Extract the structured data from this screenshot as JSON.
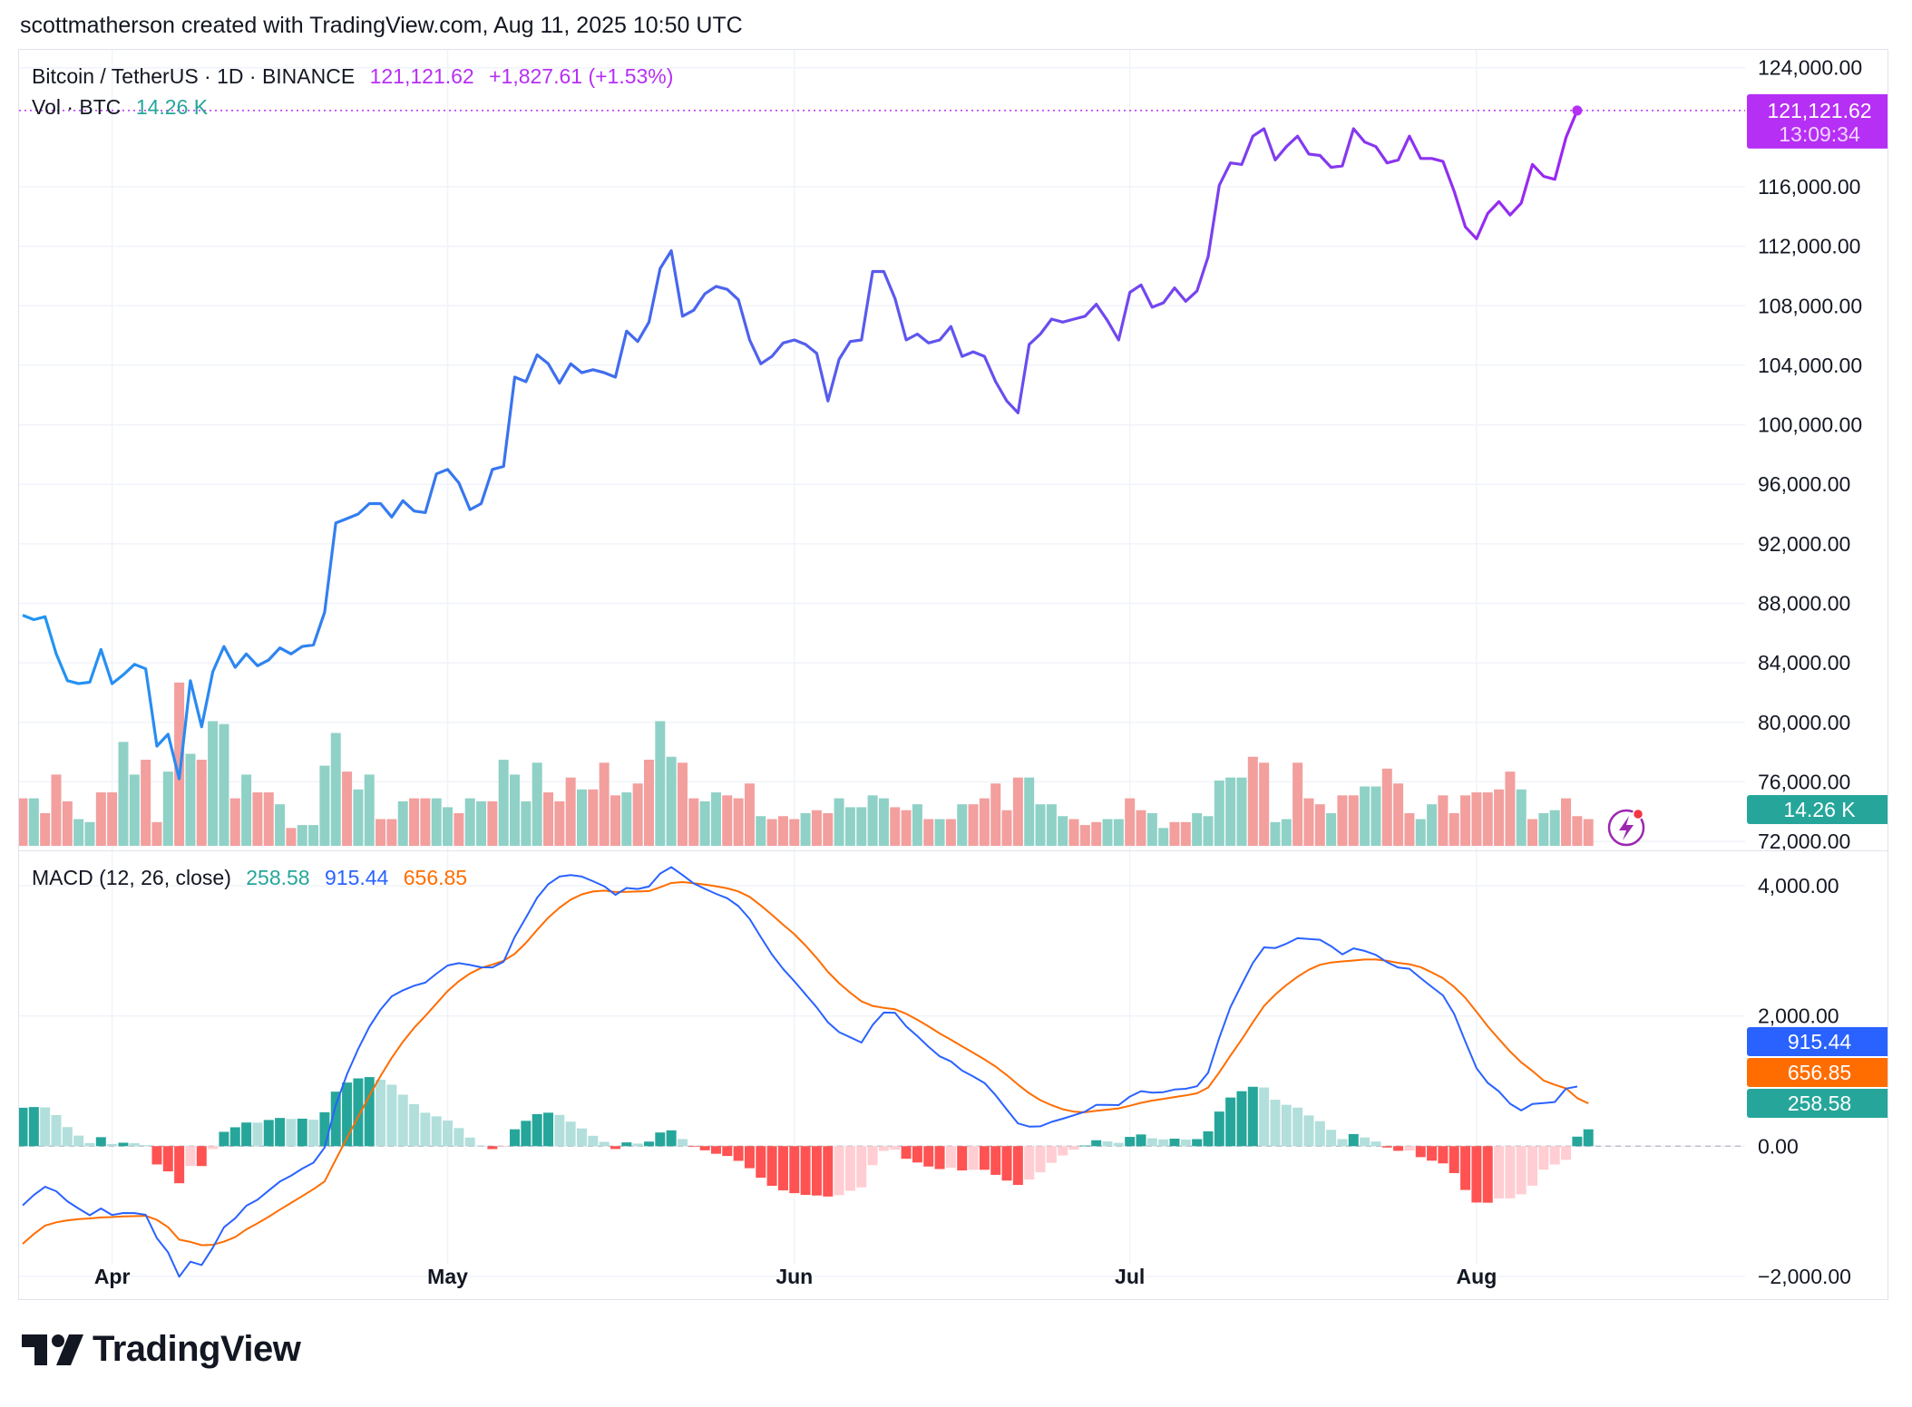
{
  "header": {
    "credit": "scottmatherson created with TradingView.com, Aug 11, 2025 10:50 UTC"
  },
  "legend": {
    "symbol": "Bitcoin / TetherUS · 1D · BINANCE",
    "price": "121,121.62",
    "change": "+1,827.61 (+1.53%)",
    "vol_label": "Vol · BTC",
    "vol_value": "14.26 K"
  },
  "macd_legend": {
    "label": "MACD (12, 26, close)",
    "hist": "258.58",
    "macd": "915.44",
    "signal": "656.85"
  },
  "price_tags": {
    "last": "121,121.62",
    "countdown": "13:09:34",
    "volume": "14.26 K",
    "macd": "915.44",
    "signal": "656.85",
    "hist": "258.58"
  },
  "brand": {
    "name": "TradingView"
  },
  "colors": {
    "price_line_start": "#2196f3",
    "price_line_end": "#9c27f0",
    "last_price": "#b62ff5",
    "volume_up": "#8fd1c6",
    "volume_down": "#f29f9e",
    "macd_line": "#2962ff",
    "signal_line": "#ff6d00",
    "hist_up_strong": "#26a69a",
    "hist_up_weak": "#b2dfdb",
    "hist_down_strong": "#ff5252",
    "hist_down_weak": "#ffcdd2",
    "grid": "#f0f3fa"
  },
  "chart_data": [
    {
      "type": "line",
      "title": "Bitcoin / TetherUS · 1D · BINANCE",
      "x_labels": [
        "Apr",
        "May",
        "Jun",
        "Jul",
        "Aug"
      ],
      "y_ticks": [
        72000,
        76000,
        80000,
        84000,
        88000,
        92000,
        96000,
        100000,
        104000,
        108000,
        112000,
        116000,
        124000
      ],
      "y_tick_labels": [
        "72,000.00",
        "76,000.00",
        "80,000.00",
        "84,000.00",
        "88,000.00",
        "92,000.00",
        "96,000.00",
        "100,000.00",
        "104,000.00",
        "108,000.00",
        "112,000.00",
        "116,000.00",
        "124,000.00"
      ],
      "ylim": [
        71700,
        125200
      ],
      "log_scale": false,
      "grid": true,
      "series": [
        {
          "name": "Bitcoin / TetherUS",
          "values": [
            87200,
            86900,
            87100,
            84600,
            82800,
            82600,
            82700,
            84900,
            82600,
            83200,
            83900,
            83600,
            78400,
            79200,
            76200,
            82800,
            79700,
            83400,
            85100,
            83700,
            84600,
            83800,
            84200,
            85000,
            84600,
            85100,
            85200,
            87400,
            93400,
            93700,
            94000,
            94700,
            94700,
            93800,
            94900,
            94200,
            94100,
            96700,
            97000,
            96100,
            94300,
            94700,
            97000,
            97200,
            103200,
            102900,
            104700,
            104100,
            102800,
            104100,
            103500,
            103700,
            103500,
            103200,
            106300,
            105600,
            106900,
            110500,
            111700,
            107300,
            107700,
            108800,
            109300,
            109100,
            108400,
            105700,
            104100,
            104600,
            105500,
            105700,
            105400,
            104800,
            101600,
            104400,
            105600,
            105700,
            110300,
            110300,
            108500,
            105700,
            106100,
            105500,
            105700,
            106600,
            104600,
            104900,
            104600,
            102900,
            101600,
            100800,
            105400,
            106100,
            107100,
            106900,
            107100,
            107300,
            108100,
            107000,
            105700,
            108900,
            109400,
            107900,
            108200,
            109200,
            108300,
            109000,
            111300,
            116100,
            117600,
            117500,
            119400,
            119900,
            117800,
            118700,
            119400,
            118200,
            118100,
            117300,
            117400,
            119900,
            119000,
            118700,
            117600,
            117800,
            119400,
            117900,
            117900,
            117700,
            115700,
            113300,
            112500,
            114200,
            115000,
            114100,
            114900,
            117500,
            116700,
            116500,
            119300,
            121121.62
          ]
        }
      ]
    },
    {
      "type": "bar",
      "title": "Vol · BTC",
      "unit": "K BTC",
      "last_value": "14.26 K",
      "up": [
        false,
        true,
        false,
        false,
        false,
        true,
        true,
        false,
        false,
        true,
        true,
        false,
        false,
        true,
        false,
        true,
        false,
        true,
        true,
        false,
        true,
        false,
        false,
        true,
        false,
        true,
        true,
        true,
        true,
        false,
        true,
        true,
        false,
        false,
        true,
        false,
        false,
        true,
        true,
        false,
        true,
        true,
        false,
        true,
        true,
        true,
        true,
        false,
        false,
        false,
        true,
        false,
        false,
        false,
        true,
        false,
        false,
        true,
        true,
        false,
        false,
        true,
        true,
        false,
        false,
        false,
        true,
        false,
        false,
        false,
        true,
        false,
        false,
        true,
        true,
        true,
        true,
        true,
        false,
        false,
        true,
        false,
        true,
        false,
        true,
        false,
        false,
        false,
        false,
        false,
        true,
        true,
        true,
        true,
        false,
        false,
        false,
        true,
        true,
        false,
        false,
        true,
        true,
        false,
        false,
        true,
        true,
        true,
        true,
        true,
        false,
        false,
        true,
        true,
        false,
        false,
        false,
        true,
        false,
        false,
        true,
        true,
        false,
        false,
        false,
        true,
        true,
        false,
        false,
        false,
        false,
        false,
        false,
        false,
        true,
        false,
        true,
        true,
        false,
        false,
        false
      ],
      "values": [
        16,
        16,
        11,
        24,
        15,
        9,
        8,
        18,
        18,
        35,
        24,
        29,
        8,
        25,
        55,
        31,
        29,
        42,
        41,
        16,
        24,
        18,
        18,
        14,
        6,
        7,
        7,
        27,
        38,
        25,
        19,
        24,
        9,
        9,
        15,
        16,
        16,
        16,
        13,
        11,
        16,
        15,
        15,
        29,
        24,
        15,
        28,
        18,
        15,
        23,
        19,
        19,
        28,
        17,
        18,
        21,
        29,
        42,
        30,
        28,
        16,
        15,
        18,
        17,
        16,
        21,
        10,
        9,
        10,
        9,
        11,
        12,
        11,
        16,
        13,
        13,
        17,
        16,
        13,
        12,
        14,
        9,
        9,
        9,
        14,
        14,
        16,
        21,
        12,
        23,
        23,
        14,
        14,
        10,
        9,
        7,
        8,
        9,
        9,
        16,
        12,
        11,
        6,
        8,
        8,
        11,
        10,
        22,
        23,
        23,
        30,
        28,
        8,
        9,
        28,
        16,
        14,
        11,
        17,
        17,
        20,
        20,
        26,
        21,
        11,
        9,
        14,
        17,
        11,
        17,
        18,
        18,
        19,
        25,
        19,
        9,
        11,
        12,
        16,
        10,
        9
      ]
    },
    {
      "type": "line",
      "title": "MACD (12, 26, close)",
      "y_ticks": [
        -2000,
        0,
        2000,
        4000
      ],
      "y_tick_labels": [
        "−2,000.00",
        "0.00",
        "2,000.00",
        "4,000.00"
      ],
      "ylim": [
        -2350,
        4530
      ],
      "grid": true,
      "series": [
        {
          "name": "MACD",
          "values": [
            -910,
            -751,
            -624,
            -693,
            -847,
            -958,
            -1062,
            -957,
            -1057,
            -1027,
            -1029,
            -1055,
            -1414,
            -1632,
            -2006,
            -1775,
            -1827,
            -1561,
            -1247,
            -1108,
            -916,
            -824,
            -682,
            -543,
            -454,
            -345,
            -254,
            -21,
            630,
            1105,
            1492,
            1833,
            2098,
            2302,
            2393,
            2465,
            2512,
            2650,
            2775,
            2812,
            2784,
            2748,
            2746,
            2833,
            3214,
            3512,
            3815,
            4024,
            4142,
            4165,
            4141,
            4071,
            3992,
            3860,
            3966,
            3951,
            3988,
            4187,
            4286,
            4165,
            4035,
            3954,
            3876,
            3809,
            3687,
            3491,
            3212,
            2944,
            2722,
            2533,
            2332,
            2132,
            1904,
            1752,
            1672,
            1591,
            1862,
            2052,
            2050,
            1840,
            1690,
            1527,
            1379,
            1302,
            1161,
            1071,
            970,
            782,
            562,
            349,
            300,
            305,
            373,
            422,
            475,
            530,
            634,
            635,
            630,
            762,
            845,
            821,
            830,
            870,
            881,
            920,
            1129,
            1665,
            2138,
            2483,
            2814,
            3054,
            3043,
            3111,
            3195,
            3182,
            3171,
            3072,
            2947,
            3038,
            3000,
            2938,
            2826,
            2743,
            2725,
            2581,
            2447,
            2315,
            2032,
            1605,
            1197,
            973,
            841,
            651,
            548,
            647,
            661,
            678,
            884,
            915.44
          ]
        },
        {
          "name": "Signal",
          "values": [
            -1500,
            -1350,
            -1220,
            -1170,
            -1140,
            -1120,
            -1110,
            -1095,
            -1090,
            -1080,
            -1075,
            -1070,
            -1133,
            -1244,
            -1436,
            -1471,
            -1521,
            -1516,
            -1467,
            -1398,
            -1279,
            -1185,
            -1084,
            -976,
            -872,
            -767,
            -661,
            -542,
            -207,
            128,
            451,
            772,
            1077,
            1358,
            1602,
            1819,
            1999,
            2192,
            2382,
            2534,
            2652,
            2737,
            2791,
            2847,
            2955,
            3123,
            3323,
            3510,
            3662,
            3788,
            3869,
            3912,
            3926,
            3904,
            3908,
            3911,
            3918,
            3977,
            4043,
            4056,
            4040,
            4018,
            3993,
            3960,
            3913,
            3830,
            3697,
            3554,
            3402,
            3255,
            3081,
            2890,
            2678,
            2504,
            2358,
            2224,
            2154,
            2125,
            2103,
            2034,
            1941,
            1840,
            1731,
            1634,
            1534,
            1434,
            1333,
            1223,
            1091,
            945,
            813,
            707,
            629,
            566,
            530,
            520,
            543,
            561,
            580,
            620,
            665,
            700,
            726,
            755,
            780,
            812,
            901,
            1134,
            1391,
            1639,
            1902,
            2153,
            2330,
            2476,
            2603,
            2710,
            2787,
            2821,
            2838,
            2852,
            2867,
            2867,
            2847,
            2815,
            2794,
            2750,
            2670,
            2580,
            2446,
            2278,
            2063,
            1842,
            1644,
            1453,
            1288,
            1155,
            1008,
            942,
            888,
            738,
            656.85
          ]
        }
      ],
      "histogram": [
        590,
        601,
        596,
        477,
        293,
        162,
        48,
        138,
        33,
        53,
        46,
        15,
        -281,
        -388,
        -570,
        -304,
        -306,
        -45,
        220,
        290,
        363,
        361,
        402,
        433,
        418,
        422,
        407,
        521,
        837,
        977,
        1041,
        1061,
        1021,
        944,
        791,
        646,
        513,
        458,
        393,
        278,
        132,
        11,
        -45,
        -14,
        259,
        389,
        492,
        514,
        480,
        377,
        272,
        159,
        66,
        -44,
        58,
        40,
        70,
        210,
        243,
        109,
        -5,
        -64,
        -117,
        -151,
        -226,
        -339,
        -485,
        -610,
        -680,
        -722,
        -749,
        -758,
        -774,
        -752,
        -686,
        -633,
        -292,
        -73,
        -53,
        -194,
        -251,
        -313,
        -352,
        -332,
        -373,
        -363,
        -363,
        -441,
        -529,
        -596,
        -513,
        -402,
        -256,
        -144,
        -55,
        10,
        91,
        74,
        50,
        142,
        180,
        121,
        104,
        115,
        101,
        108,
        228,
        531,
        747,
        844,
        912,
        901,
        713,
        635,
        592,
        472,
        384,
        251,
        109,
        186,
        133,
        71,
        -21,
        -72,
        -69,
        -169,
        -223,
        -265,
        -414,
        -673,
        -866,
        -869,
        -803,
        -802,
        -740,
        -607,
        -361,
        -281,
        -210,
        146,
        258.58
      ]
    }
  ]
}
